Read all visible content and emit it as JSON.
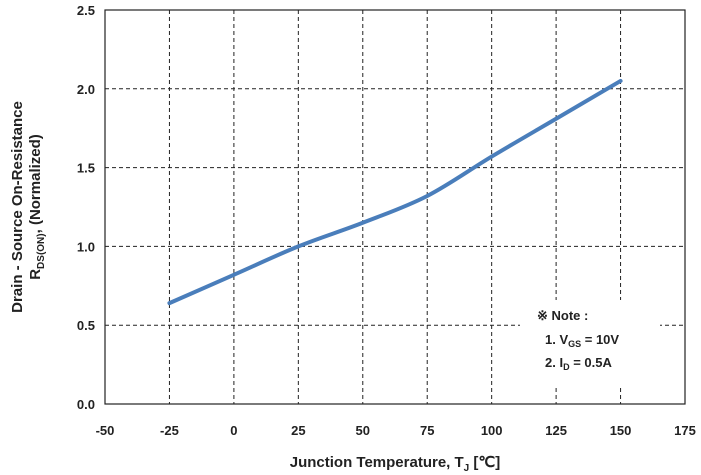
{
  "chart_data": {
    "type": "line",
    "xlabel_main": "Junction Temperature, T",
    "xlabel_sub": "J",
    "xlabel_unit": " [℃]",
    "ylabel_line1": "Drain - Source On-Resistance",
    "ylabel_line2_main": "R",
    "ylabel_line2_sub": "DS(ON)",
    "ylabel_line2_rest": ", (Normalized)",
    "xlim": [
      -50,
      175
    ],
    "ylim": [
      0.0,
      2.5
    ],
    "x_ticks": [
      "-50",
      "-25",
      "0",
      "25",
      "50",
      "75",
      "100",
      "125",
      "150",
      "175"
    ],
    "y_ticks": [
      "0.0",
      "0.5",
      "1.0",
      "1.5",
      "2.0",
      "2.5"
    ],
    "grid": true,
    "series_color": "#4a7ebb",
    "series": [
      {
        "x": [
          -25,
          0,
          25,
          50,
          75,
          100,
          125,
          150
        ],
        "values": [
          0.64,
          0.82,
          1.0,
          1.15,
          1.32,
          1.57,
          1.81,
          2.05
        ]
      }
    ],
    "note": {
      "title": "※ Note :",
      "line1_prefix": "1. V",
      "line1_sub": "GS",
      "line1_suffix": " = 10V",
      "line2_prefix": "2. I",
      "line2_sub": "D",
      "line2_suffix": " = 0.5A"
    }
  }
}
